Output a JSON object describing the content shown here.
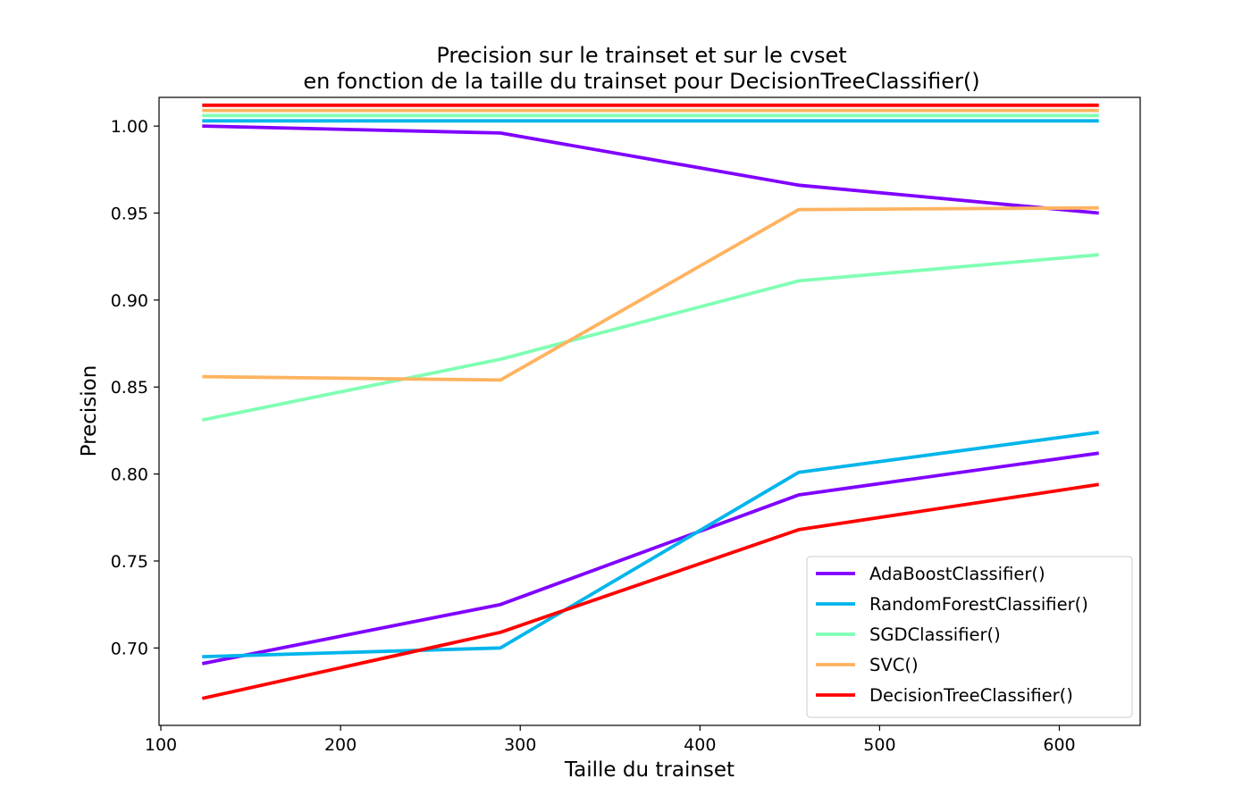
{
  "chart_data": {
    "type": "line",
    "title_line1": "Precision sur le trainset et sur le cvset",
    "title_line2": "en fonction de la taille du trainset pour DecisionTreeClassifier()",
    "xlabel": "Taille du trainset",
    "ylabel": "Precision",
    "xlim": [
      99,
      645
    ],
    "ylim": [
      0.6555,
      1.0165
    ],
    "xticks": [
      100,
      200,
      300,
      400,
      500,
      600
    ],
    "yticks": [
      0.7,
      0.75,
      0.8,
      0.85,
      0.9,
      0.95,
      1.0
    ],
    "ytick_labels": [
      "0.70",
      "0.75",
      "0.80",
      "0.85",
      "0.90",
      "0.95",
      "1.00"
    ],
    "x": [
      123,
      289,
      455,
      622
    ],
    "grid": false,
    "legend_position": "lower right",
    "series": [
      {
        "name": "AdaBoostClassifier()",
        "color": "#8000ff",
        "train": [
          1.0,
          0.996,
          0.966,
          0.95
        ],
        "cv": [
          0.691,
          0.725,
          0.788,
          0.812
        ]
      },
      {
        "name": "RandomForestClassifier()",
        "color": "#00b5eb",
        "train": [
          1.003,
          1.003,
          1.003,
          1.003
        ],
        "cv": [
          0.695,
          0.7,
          0.801,
          0.824
        ]
      },
      {
        "name": "SGDClassifier()",
        "color": "#80ffb4",
        "train": [
          1.006,
          1.006,
          1.006,
          1.006
        ],
        "cv": [
          0.831,
          0.866,
          0.911,
          0.926
        ]
      },
      {
        "name": "SVC()",
        "color": "#ffb360",
        "train": [
          1.009,
          1.009,
          1.009,
          1.009
        ],
        "cv": [
          0.856,
          0.854,
          0.952,
          0.953
        ]
      },
      {
        "name": "DecisionTreeClassifier()",
        "color": "#ff0000",
        "train": [
          1.012,
          1.012,
          1.012,
          1.012
        ],
        "cv": [
          0.671,
          0.709,
          0.768,
          0.794
        ]
      }
    ]
  }
}
